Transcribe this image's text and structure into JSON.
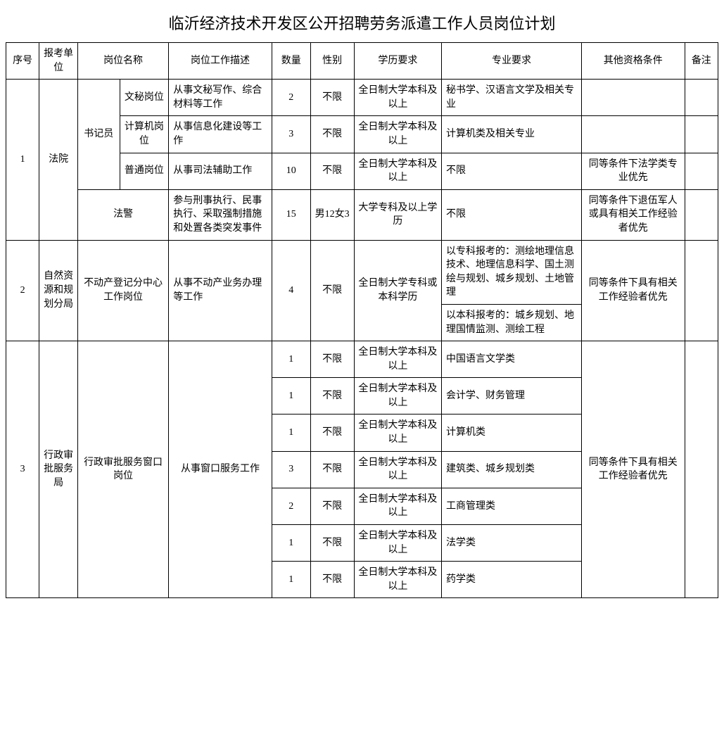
{
  "title": "临沂经济技术开发区公开招聘劳务派遣工作人员岗位计划",
  "headers": {
    "seq": "序号",
    "unit": "报考单位",
    "position": "岗位名称",
    "desc": "岗位工作描述",
    "qty": "数量",
    "sex": "性别",
    "edu": "学历要求",
    "major": "专业要求",
    "other": "其他资格条件",
    "note": "备注"
  },
  "group1": {
    "seq": "1",
    "unit": "法院",
    "clerk_label": "书记员",
    "rows": [
      {
        "pos": "文秘岗位",
        "desc": "从事文秘写作、综合材料等工作",
        "qty": "2",
        "sex": "不限",
        "edu": "全日制大学本科及以上",
        "major": "秘书学、汉语言文学及相关专业",
        "other": ""
      },
      {
        "pos": "计算机岗位",
        "desc": "从事信息化建设等工作",
        "qty": "3",
        "sex": "不限",
        "edu": "全日制大学本科及以上",
        "major": "计算机类及相关专业",
        "other": ""
      },
      {
        "pos": "普通岗位",
        "desc": "从事司法辅助工作",
        "qty": "10",
        "sex": "不限",
        "edu": "全日制大学本科及以上",
        "major": "不限",
        "other": "同等条件下法学类专业优先"
      }
    ],
    "police": {
      "pos": "法警",
      "desc": "参与刑事执行、民事执行、采取强制措施和处置各类突发事件",
      "qty": "15",
      "sex": "男12女3",
      "edu": "大学专科及以上学历",
      "major": "不限",
      "other": "同等条件下退伍军人或具有相关工作经验者优先"
    }
  },
  "group2": {
    "seq": "2",
    "unit": "自然资源和规划分局",
    "pos": "不动产登记分中心工作岗位",
    "desc": "从事不动产业务办理等工作",
    "qty": "4",
    "sex": "不限",
    "edu": "全日制大学专科或本科学历",
    "major1": "以专科报考的：测绘地理信息技术、地理信息科学、国土测绘与规划、城乡规划、土地管理",
    "major2": "以本科报考的：城乡规划、地理国情监测、测绘工程",
    "other": "同等条件下具有相关工作经验者优先"
  },
  "group3": {
    "seq": "3",
    "unit": "行政审批服务局",
    "pos": "行政审批服务窗口岗位",
    "desc": "从事窗口服务工作",
    "other": "同等条件下具有相关工作经验者优先",
    "rows": [
      {
        "qty": "1",
        "sex": "不限",
        "edu": "全日制大学本科及以上",
        "major": "中国语言文学类"
      },
      {
        "qty": "1",
        "sex": "不限",
        "edu": "全日制大学本科及以上",
        "major": "会计学、财务管理"
      },
      {
        "qty": "1",
        "sex": "不限",
        "edu": "全日制大学本科及以上",
        "major": "计算机类"
      },
      {
        "qty": "3",
        "sex": "不限",
        "edu": "全日制大学本科及以上",
        "major": "建筑类、城乡规划类"
      },
      {
        "qty": "2",
        "sex": "不限",
        "edu": "全日制大学本科及以上",
        "major": "工商管理类"
      },
      {
        "qty": "1",
        "sex": "不限",
        "edu": "全日制大学本科及以上",
        "major": "法学类"
      },
      {
        "qty": "1",
        "sex": "不限",
        "edu": "全日制大学本科及以上",
        "major": "药学类"
      }
    ]
  },
  "styling": {
    "type": "table",
    "border_color": "#000000",
    "background_color": "#ffffff",
    "text_color": "#000000",
    "title_fontsize": 22,
    "cell_fontsize": 14,
    "font_family": "SimSun"
  }
}
